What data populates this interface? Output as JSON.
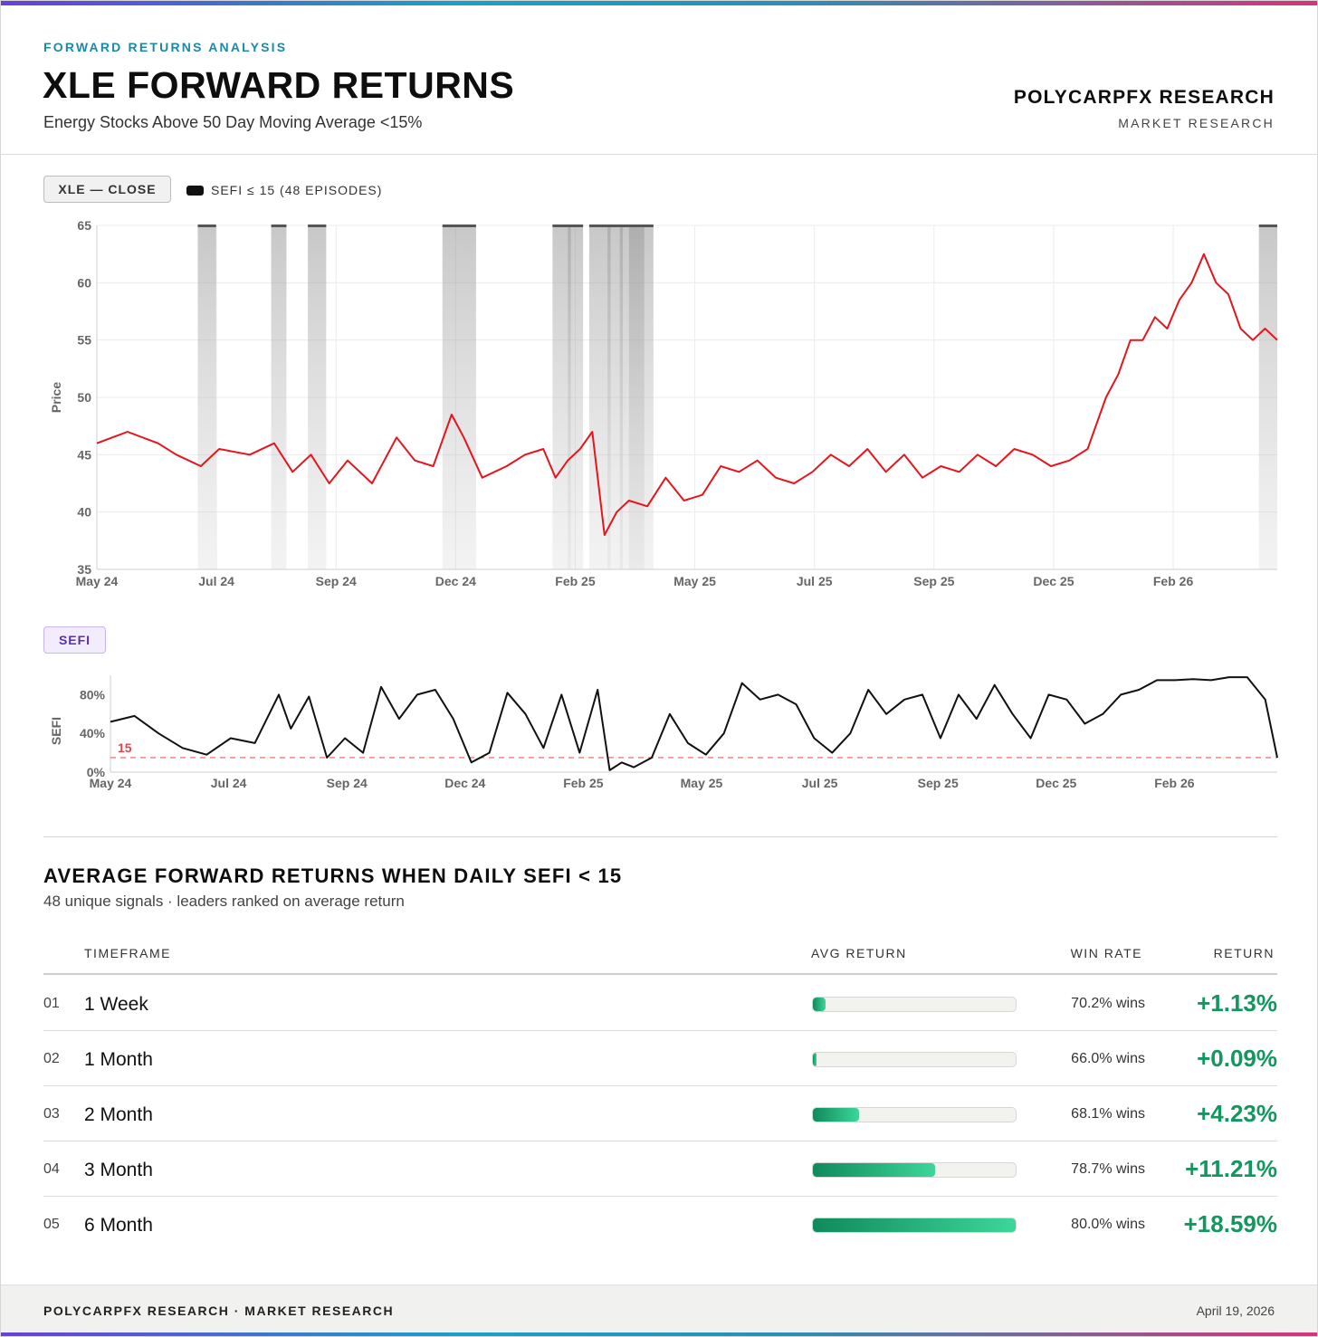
{
  "header": {
    "kicker": "FORWARD RETURNS ANALYSIS",
    "title": "XLE FORWARD RETURNS",
    "subtitle": "Energy Stocks Above 50 Day Moving Average <15%",
    "brand": "POLYCARPFX RESEARCH",
    "brand_sub": "MARKET RESEARCH"
  },
  "price_chart": {
    "tag": "XLE — CLOSE",
    "legend": "SEFI ≤ 15 (48 EPISODES)"
  },
  "sefi_chart": {
    "tag": "SEFI"
  },
  "colors": {
    "price_line": "#e8141c",
    "sefi_line": "#111111",
    "threshold": "#f07a7a",
    "accent": "#1a8aa6",
    "positive": "#12985e"
  },
  "chart_data": [
    {
      "type": "line",
      "title": "",
      "ylabel": "Price",
      "xlabel": "",
      "ylim": [
        35,
        65
      ],
      "yticks": [
        "65",
        "60",
        "55",
        "50",
        "45",
        "40",
        "35"
      ],
      "xticks": [
        "May 24",
        "Jul 24",
        "Sep 24",
        "Dec 24",
        "Feb 25",
        "May 25",
        "Jul 25",
        "Sep 25",
        "Dec 25",
        "Feb 26"
      ],
      "grid": true,
      "shaded_episodes_label": "SEFI ≤ 15 (48 EPISODES)",
      "shaded_months": [
        [
          1.65,
          1.95
        ],
        [
          2.85,
          3.1
        ],
        [
          3.45,
          3.75
        ],
        [
          5.65,
          6.2
        ],
        [
          7.45,
          7.75
        ],
        [
          7.7,
          7.95
        ],
        [
          8.05,
          8.4
        ],
        [
          8.35,
          8.6
        ],
        [
          8.55,
          8.95
        ],
        [
          8.7,
          8.9
        ],
        [
          8.9,
          9.1
        ],
        [
          19.0,
          19.3
        ]
      ],
      "series": [
        {
          "x": [
            0.0,
            0.5,
            1.0,
            1.3,
            1.7,
            2.0,
            2.5,
            2.9,
            3.2,
            3.5,
            3.8,
            4.1,
            4.5,
            4.9,
            5.2,
            5.5,
            5.8,
            6.0,
            6.3,
            6.7,
            7.0,
            7.3,
            7.5,
            7.7,
            7.9,
            8.1,
            8.3,
            8.5,
            8.7,
            9.0,
            9.3,
            9.6,
            9.9,
            10.2,
            10.5,
            10.8,
            11.1,
            11.4,
            11.7,
            12.0,
            12.3,
            12.6,
            12.9,
            13.2,
            13.5,
            13.8,
            14.1,
            14.4,
            14.7,
            15.0,
            15.3,
            15.6,
            15.9,
            16.2,
            16.5,
            16.7,
            16.9,
            17.1,
            17.3,
            17.5,
            17.7,
            17.9,
            18.1,
            18.3,
            18.5,
            18.7,
            18.9,
            19.1,
            19.3
          ],
          "y": [
            46.0,
            47.0,
            46.0,
            45.0,
            44.0,
            45.5,
            45.0,
            46.0,
            43.5,
            45.0,
            42.5,
            44.5,
            42.5,
            46.5,
            44.5,
            44.0,
            48.5,
            46.5,
            43.0,
            44.0,
            45.0,
            45.5,
            43.0,
            44.5,
            45.5,
            47.0,
            38.0,
            40.0,
            41.0,
            40.5,
            43.0,
            41.0,
            41.5,
            44.0,
            43.5,
            44.5,
            43.0,
            42.5,
            43.5,
            45.0,
            44.0,
            45.5,
            43.5,
            45.0,
            43.0,
            44.0,
            43.5,
            45.0,
            44.0,
            45.5,
            45.0,
            44.0,
            44.5,
            45.5,
            50.0,
            52.0,
            55.0,
            55.0,
            57.0,
            56.0,
            58.5,
            60.0,
            62.5,
            60.0,
            59.0,
            56.0,
            55.0,
            56.0,
            55.0
          ]
        }
      ]
    },
    {
      "type": "line",
      "title": "",
      "ylabel": "SEFI",
      "xlabel": "",
      "ylim": [
        0,
        100
      ],
      "yticks": [
        "80%",
        "40%",
        "0%"
      ],
      "xticks": [
        "May 24",
        "Jul 24",
        "Sep 24",
        "Dec 24",
        "Feb 25",
        "May 25",
        "Jul 25",
        "Sep 25",
        "Dec 25",
        "Feb 26"
      ],
      "threshold": 15,
      "threshold_label": "15",
      "grid": false,
      "series": [
        {
          "x": [
            0.0,
            0.4,
            0.8,
            1.2,
            1.6,
            2.0,
            2.4,
            2.8,
            3.0,
            3.3,
            3.6,
            3.9,
            4.2,
            4.5,
            4.8,
            5.1,
            5.4,
            5.7,
            6.0,
            6.3,
            6.6,
            6.9,
            7.2,
            7.5,
            7.8,
            8.1,
            8.3,
            8.5,
            8.7,
            9.0,
            9.3,
            9.6,
            9.9,
            10.2,
            10.5,
            10.8,
            11.1,
            11.4,
            11.7,
            12.0,
            12.3,
            12.6,
            12.9,
            13.2,
            13.5,
            13.8,
            14.1,
            14.4,
            14.7,
            15.0,
            15.3,
            15.6,
            15.9,
            16.2,
            16.5,
            16.8,
            17.1,
            17.4,
            17.7,
            18.0,
            18.3,
            18.6,
            18.9,
            19.2,
            19.4
          ],
          "y": [
            52,
            58,
            40,
            25,
            18,
            35,
            30,
            80,
            45,
            78,
            15,
            35,
            20,
            88,
            55,
            80,
            85,
            55,
            10,
            20,
            82,
            60,
            25,
            80,
            20,
            85,
            2,
            10,
            5,
            15,
            60,
            30,
            18,
            40,
            92,
            75,
            80,
            70,
            35,
            20,
            40,
            85,
            60,
            75,
            80,
            35,
            80,
            55,
            90,
            60,
            35,
            80,
            75,
            50,
            60,
            80,
            85,
            95,
            95,
            96,
            95,
            98,
            98,
            75,
            15
          ]
        }
      ]
    }
  ],
  "table": {
    "title": "AVERAGE FORWARD RETURNS WHEN DAILY SEFI < 15",
    "subtitle": "48 unique signals · leaders ranked on average return",
    "headers": {
      "timeframe": "TIMEFRAME",
      "avg_return": "AVG RETURN",
      "win_rate": "WIN RATE",
      "return": "RETURN"
    },
    "rows": [
      {
        "num": "01",
        "timeframe": "1 Week",
        "bar_pct": 6.1,
        "win": "70.2% wins",
        "ret": "+1.13%"
      },
      {
        "num": "02",
        "timeframe": "1 Month",
        "bar_pct": 2.0,
        "win": "66.0% wins",
        "ret": "+0.09%"
      },
      {
        "num": "03",
        "timeframe": "2 Month",
        "bar_pct": 22.8,
        "win": "68.1% wins",
        "ret": "+4.23%"
      },
      {
        "num": "04",
        "timeframe": "3 Month",
        "bar_pct": 60.3,
        "win": "78.7% wins",
        "ret": "+11.21%"
      },
      {
        "num": "05",
        "timeframe": "6 Month",
        "bar_pct": 100,
        "win": "80.0% wins",
        "ret": "+18.59%"
      }
    ]
  },
  "footer": {
    "left": "POLYCARPFX RESEARCH · MARKET RESEARCH",
    "date": "April 19, 2026"
  }
}
